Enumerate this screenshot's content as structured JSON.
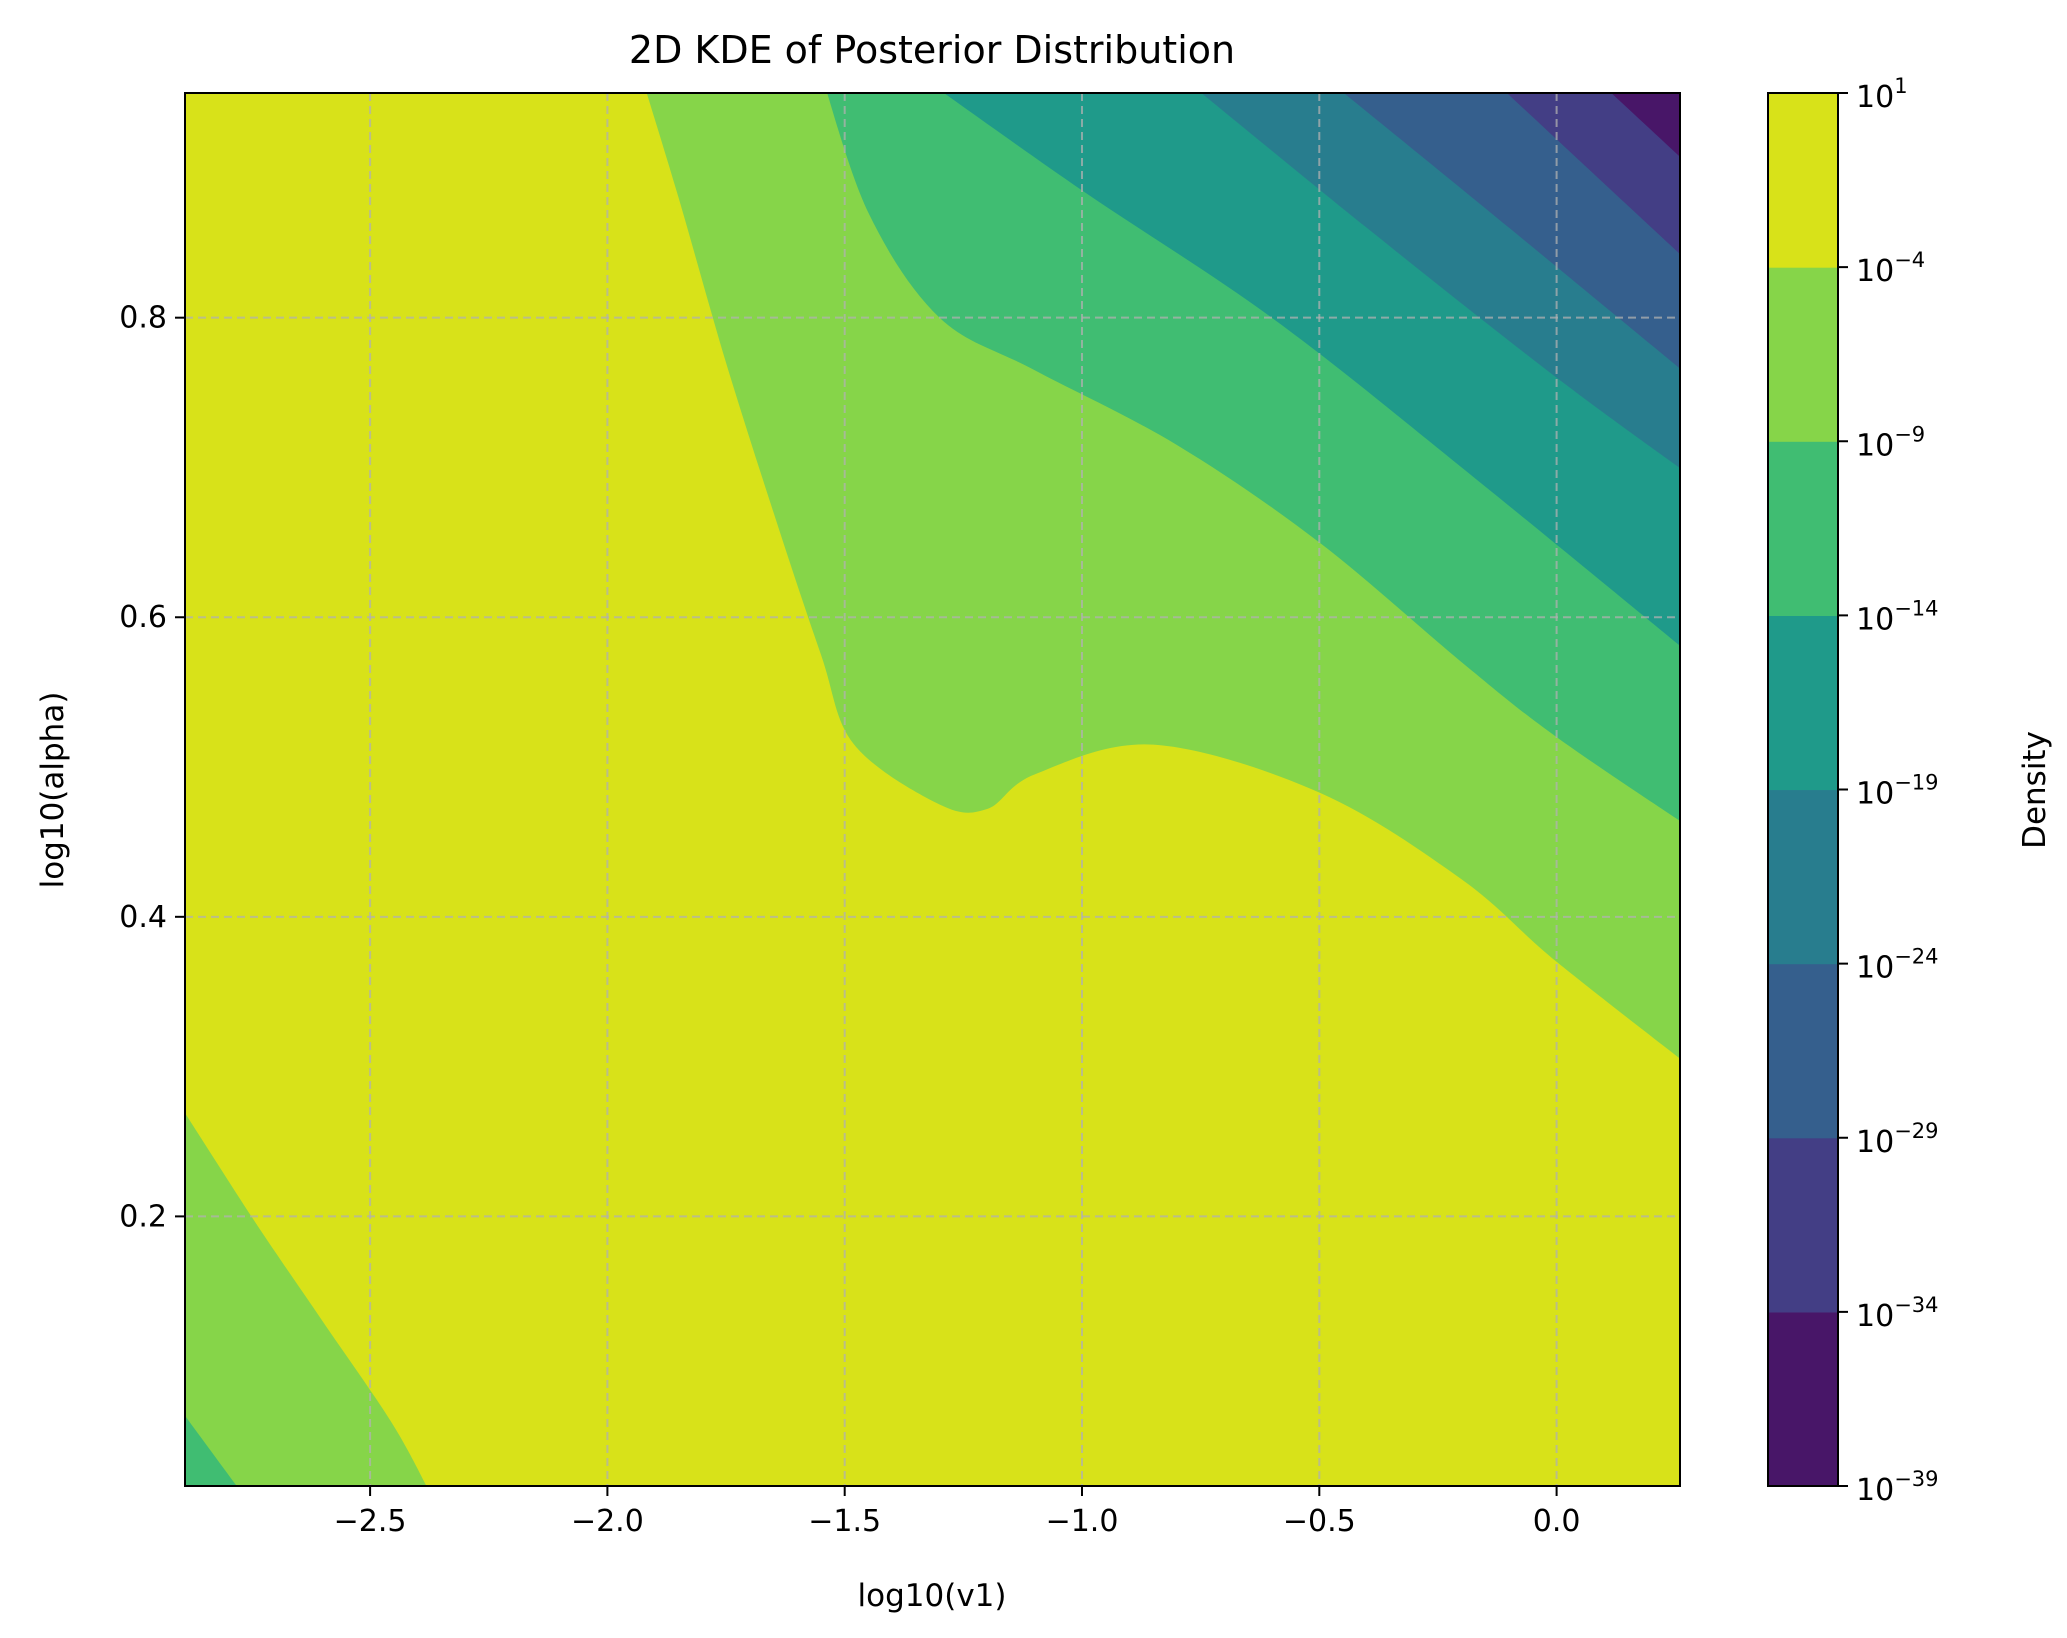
{
  "chart_data": {
    "type": "contourf",
    "title": "2D KDE of Posterior Distribution",
    "xlabel": "log10(v1)",
    "ylabel": "log10(alpha)",
    "xlim": [
      -2.89,
      0.26
    ],
    "ylim": [
      0.02,
      0.95
    ],
    "x_ticks": [
      {
        "value": -2.5,
        "label": "−2.5"
      },
      {
        "value": -2.0,
        "label": "−2.0"
      },
      {
        "value": -1.5,
        "label": "−1.5"
      },
      {
        "value": -1.0,
        "label": "−1.0"
      },
      {
        "value": -0.5,
        "label": "−0.5"
      },
      {
        "value": 0.0,
        "label": "0.0"
      }
    ],
    "y_ticks": [
      {
        "value": 0.2,
        "label": "0.2"
      },
      {
        "value": 0.4,
        "label": "0.4"
      },
      {
        "value": 0.6,
        "label": "0.6"
      },
      {
        "value": 0.8,
        "label": "0.8"
      }
    ],
    "grid": true,
    "colorbar": {
      "label": "Density",
      "scale": "log",
      "levels": [
        {
          "base": "10",
          "exp": "−39"
        },
        {
          "base": "10",
          "exp": "−34"
        },
        {
          "base": "10",
          "exp": "−29"
        },
        {
          "base": "10",
          "exp": "−24"
        },
        {
          "base": "10",
          "exp": "−19"
        },
        {
          "base": "10",
          "exp": "−14"
        },
        {
          "base": "10",
          "exp": "−9"
        },
        {
          "base": "10",
          "exp": "−4"
        },
        {
          "base": "10",
          "exp": "1"
        }
      ],
      "band_colors": [
        "#481668",
        "#433e85",
        "#355f8d",
        "#287d8e",
        "#1f9a8a",
        "#40bd72",
        "#86d549",
        "#d8e219"
      ]
    },
    "contour_bands": [
      {
        "color": "#86d549",
        "boundary_upper": [
          [
            -1.93,
            0.95
          ],
          [
            -1.85,
            0.88
          ],
          [
            -1.75,
            0.77
          ],
          [
            -1.65,
            0.67
          ],
          [
            -1.55,
            0.575
          ],
          [
            -1.48,
            0.515
          ],
          [
            -1.3,
            0.475
          ],
          [
            -1.2,
            0.472
          ],
          [
            -1.1,
            0.495
          ],
          [
            -0.85,
            0.515
          ],
          [
            -0.5,
            0.483
          ],
          [
            -0.2,
            0.425
          ],
          [
            0.0,
            0.37
          ],
          [
            0.26,
            0.295
          ]
        ],
        "boundary_lower": [
          [
            -2.89,
            0.29
          ],
          [
            -2.75,
            0.2
          ],
          [
            -2.6,
            0.13
          ],
          [
            -2.45,
            0.06
          ],
          [
            -2.36,
            0.02
          ]
        ]
      },
      {
        "color": "#40bd72",
        "boundary_upper": [
          [
            -1.55,
            0.95
          ],
          [
            -1.45,
            0.87
          ],
          [
            -1.3,
            0.8
          ],
          [
            -1.1,
            0.765
          ],
          [
            -0.8,
            0.715
          ],
          [
            -0.5,
            0.65
          ],
          [
            -0.2,
            0.57
          ],
          [
            0.0,
            0.52
          ],
          [
            0.26,
            0.455
          ]
        ],
        "boundary_lower": [
          [
            -2.89,
            0.085
          ],
          [
            -2.75,
            0.02
          ]
        ]
      },
      {
        "color": "#1f9a8a",
        "boundary_upper": [
          [
            -1.35,
            0.95
          ],
          [
            -1.0,
            0.885
          ],
          [
            -0.6,
            0.8
          ],
          [
            -0.2,
            0.7
          ],
          [
            0.26,
            0.57
          ]
        ]
      },
      {
        "color": "#287d8e",
        "boundary_upper": [
          [
            -0.8,
            0.95
          ],
          [
            -0.4,
            0.86
          ],
          [
            0.0,
            0.76
          ],
          [
            0.26,
            0.69
          ]
        ]
      },
      {
        "color": "#355f8d",
        "boundary_upper": [
          [
            -0.5,
            0.95
          ],
          [
            -0.1,
            0.86
          ],
          [
            0.26,
            0.755
          ]
        ]
      },
      {
        "color": "#433e85",
        "boundary_upper": [
          [
            -0.15,
            0.95
          ],
          [
            0.26,
            0.83
          ]
        ]
      },
      {
        "color": "#481668",
        "boundary_upper": [
          [
            0.07,
            0.95
          ],
          [
            0.26,
            0.895
          ]
        ]
      }
    ]
  }
}
